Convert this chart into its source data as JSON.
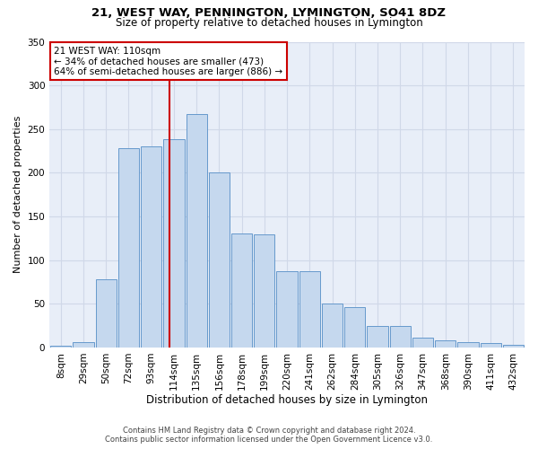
{
  "title": "21, WEST WAY, PENNINGTON, LYMINGTON, SO41 8DZ",
  "subtitle": "Size of property relative to detached houses in Lymington",
  "xlabel": "Distribution of detached houses by size in Lymington",
  "ylabel": "Number of detached properties",
  "categories": [
    "8sqm",
    "29sqm",
    "50sqm",
    "72sqm",
    "93sqm",
    "114sqm",
    "135sqm",
    "156sqm",
    "178sqm",
    "199sqm",
    "220sqm",
    "241sqm",
    "262sqm",
    "284sqm",
    "305sqm",
    "326sqm",
    "347sqm",
    "368sqm",
    "390sqm",
    "411sqm",
    "432sqm"
  ],
  "values": [
    2,
    6,
    78,
    228,
    230,
    238,
    267,
    200,
    131,
    130,
    87,
    87,
    50,
    46,
    25,
    25,
    11,
    8,
    6,
    5,
    3
  ],
  "bar_color": "#c5d8ee",
  "bar_edge_color": "#6699cc",
  "vline_color": "#cc0000",
  "ann_box_edge": "#cc0000",
  "bg_color": "#e8eef8",
  "grid_color": "#d0d8e8",
  "ylim": [
    0,
    350
  ],
  "yticks": [
    0,
    50,
    100,
    150,
    200,
    250,
    300,
    350
  ],
  "property_sqm": 110,
  "bin_starts": [
    8,
    29,
    50,
    72,
    93,
    114,
    135,
    156,
    178,
    199,
    220,
    241,
    262,
    284,
    305,
    326,
    347,
    368,
    390,
    411,
    432
  ],
  "property_label": "21 WEST WAY: 110sqm",
  "ann_line1": "← 34% of detached houses are smaller (473)",
  "ann_line2": "64% of semi-detached houses are larger (886) →",
  "footer1": "Contains HM Land Registry data © Crown copyright and database right 2024.",
  "footer2": "Contains public sector information licensed under the Open Government Licence v3.0.",
  "title_fontsize": 9.5,
  "subtitle_fontsize": 8.5,
  "xlabel_fontsize": 8.5,
  "ylabel_fontsize": 8,
  "tick_fontsize": 7.5,
  "ann_fontsize": 7.5,
  "footer_fontsize": 6
}
